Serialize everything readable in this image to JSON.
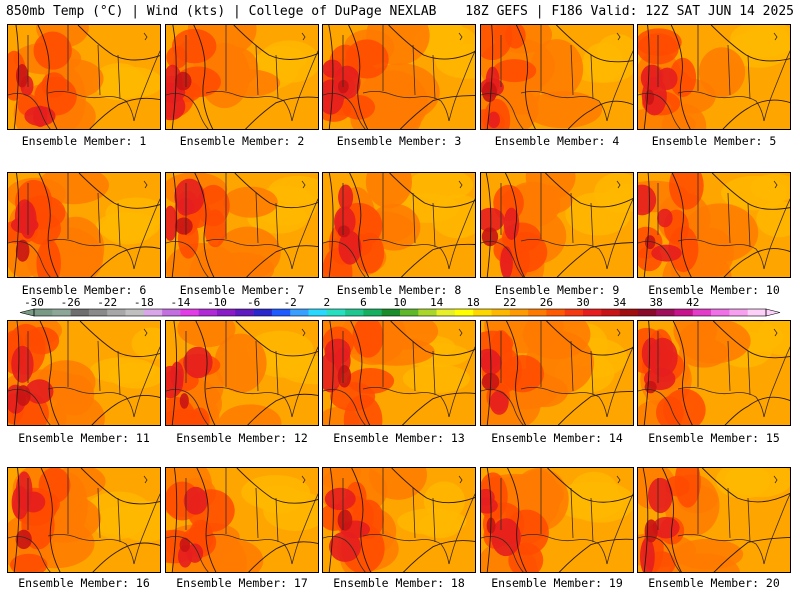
{
  "header": {
    "left": "850mb Temp (°C) | Wind (kts) | College of DuPage NEXLAB",
    "right": "18Z GEFS | F186 Valid: 12Z SAT JUN 14 2025"
  },
  "members": [
    "Ensemble Member: 1",
    "Ensemble Member: 2",
    "Ensemble Member: 3",
    "Ensemble Member: 4",
    "Ensemble Member: 5",
    "Ensemble Member: 6",
    "Ensemble Member: 7",
    "Ensemble Member: 8",
    "Ensemble Member: 9",
    "Ensemble Member: 10",
    "Ensemble Member: 11",
    "Ensemble Member: 12",
    "Ensemble Member: 13",
    "Ensemble Member: 14",
    "Ensemble Member: 15",
    "Ensemble Member: 16",
    "Ensemble Member: 17",
    "Ensemble Member: 18",
    "Ensemble Member: 19",
    "Ensemble Member: 20"
  ],
  "colorbar": {
    "labels": [
      "-30",
      "-26",
      "-22",
      "-18",
      "-14",
      "-10",
      "-6",
      "-2",
      "2",
      "6",
      "10",
      "14",
      "18",
      "22",
      "26",
      "30",
      "34",
      "38",
      "42"
    ],
    "colors": [
      "#7a9a86",
      "#8ea698",
      "#6f6f6f",
      "#8a8a8a",
      "#a8a8a8",
      "#c0c0c0",
      "#d9a6e8",
      "#c36fe0",
      "#e23ce6",
      "#b02ad6",
      "#8a1cc8",
      "#5e1bbf",
      "#2a2acc",
      "#1e5cff",
      "#3aa0ff",
      "#28d8ff",
      "#28e0c0",
      "#20c890",
      "#18b060",
      "#1a8c2a",
      "#5fb82a",
      "#a8d62a",
      "#e8f02a",
      "#ffff00",
      "#ffd700",
      "#ffb800",
      "#ff9a00",
      "#ff7a00",
      "#ff5a00",
      "#f53a10",
      "#e61e1e",
      "#c81414",
      "#a00e0e",
      "#8a0a2a",
      "#a0105a",
      "#c8148c",
      "#e23cc8",
      "#f070e8",
      "#f8a0f0",
      "#fcd0f8"
    ]
  },
  "palette": {
    "base": "#ffa500",
    "warm": "#ff7a00",
    "hot": "#ff4a00",
    "hotter": "#e61e1e",
    "hottest": "#c81414",
    "cool": "#ffb800",
    "contour": "#2a1a10"
  }
}
